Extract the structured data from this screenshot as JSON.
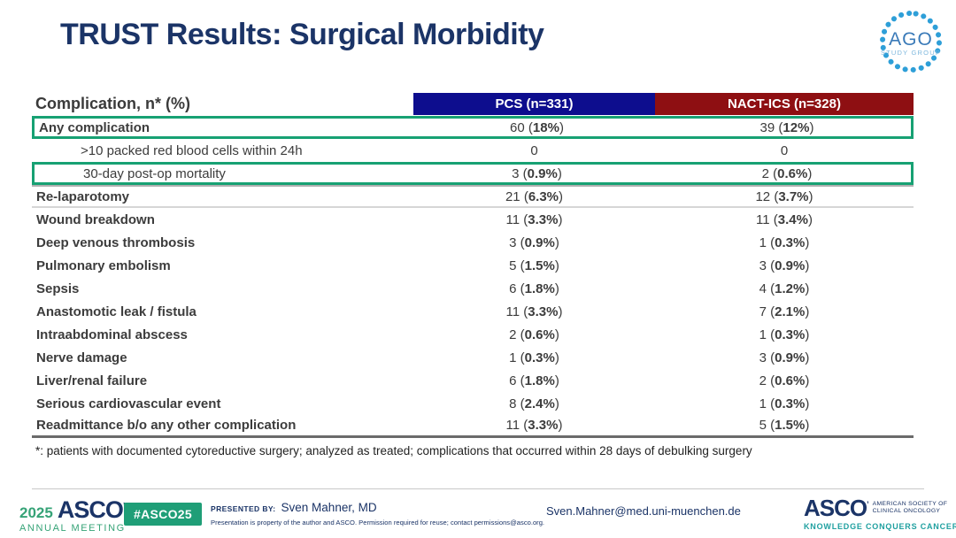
{
  "slide": {
    "title": "TRUST Results: Surgical Morbidity",
    "footnote": "*: patients with documented cytoreductive surgery; analyzed as treated; complications that occurred within 28 days of debulking surgery"
  },
  "ago_logo": {
    "name": "AGO",
    "subtitle": "STUDY GROUP"
  },
  "table": {
    "header": {
      "label": "Complication, n* (%)",
      "pcs": "PCS (n=331)",
      "nact": "NACT-ICS (n=328)"
    },
    "rows": [
      {
        "label": "Any complication",
        "highlight": true,
        "indent": false,
        "pcs": {
          "n": "60",
          "pct": "18%"
        },
        "nact": {
          "n": "39",
          "pct": "12%"
        }
      },
      {
        "label": ">10 packed red blood cells within 24h",
        "indent": true,
        "pcs": {
          "n": "0"
        },
        "nact": {
          "n": "0"
        }
      },
      {
        "label": "30-day post-op mortality",
        "highlight": true,
        "indent": true,
        "pcs": {
          "n": "3",
          "pct": "0.9%"
        },
        "nact": {
          "n": "2",
          "pct": "0.6%"
        }
      },
      {
        "label": "Re-laparotomy",
        "separator": true,
        "pcs": {
          "n": "21",
          "pct": "6.3%"
        },
        "nact": {
          "n": "12",
          "pct": "3.7%"
        }
      },
      {
        "label": "Wound breakdown",
        "pcs": {
          "n": "11",
          "pct": "3.3%"
        },
        "nact": {
          "n": "11",
          "pct": "3.4%"
        }
      },
      {
        "label": "Deep venous thrombosis",
        "pcs": {
          "n": "3",
          "pct": "0.9%"
        },
        "nact": {
          "n": "1",
          "pct": "0.3%"
        }
      },
      {
        "label": "Pulmonary embolism",
        "pcs": {
          "n": "5",
          "pct": "1.5%"
        },
        "nact": {
          "n": "3",
          "pct": "0.9%"
        }
      },
      {
        "label": "Sepsis",
        "pcs": {
          "n": "6",
          "pct": "1.8%"
        },
        "nact": {
          "n": "4",
          "pct": "1.2%"
        }
      },
      {
        "label": "Anastomotic leak / fistula",
        "pcs": {
          "n": "11",
          "pct": "3.3%"
        },
        "nact": {
          "n": "7",
          "pct": "2.1%"
        }
      },
      {
        "label": "Intraabdominal abscess",
        "pcs": {
          "n": "2",
          "pct": "0.6%"
        },
        "nact": {
          "n": "1",
          "pct": "0.3%"
        }
      },
      {
        "label": "Nerve damage",
        "pcs": {
          "n": "1",
          "pct": "0.3%"
        },
        "nact": {
          "n": "3",
          "pct": "0.9%"
        }
      },
      {
        "label": "Liver/renal failure",
        "pcs": {
          "n": "6",
          "pct": "1.8%"
        },
        "nact": {
          "n": "2",
          "pct": "0.6%"
        }
      },
      {
        "label": "Serious cardiovascular event",
        "pcs": {
          "n": "8",
          "pct": "2.4%"
        },
        "nact": {
          "n": "1",
          "pct": "0.3%"
        }
      },
      {
        "label": "Readmittance b/o any other complication",
        "pcs": {
          "n": "11",
          "pct": "3.3%"
        },
        "nact": {
          "n": "5",
          "pct": "1.5%"
        }
      }
    ]
  },
  "footer": {
    "meeting_logo": {
      "year": "2025",
      "org": "ASCO",
      "line2": "ANNUAL MEETING"
    },
    "hashtag": "#ASCO25",
    "presented_by_label": "PRESENTED BY:",
    "presenter": "Sven Mahner, MD",
    "disclaimer": "Presentation is property of the author and ASCO. Permission required for reuse; contact permissions@asco.org.",
    "email": "Sven.Mahner@med.uni-muenchen.de",
    "asco_logo": {
      "wordmark": "ASCO",
      "society_line1": "AMERICAN SOCIETY OF",
      "society_line2": "CLINICAL ONCOLOGY",
      "tagline": "KNOWLEDGE CONQUERS CANCER"
    }
  },
  "colors": {
    "title_navy": "#1b3467",
    "pcs_header_bg": "#0d0d8e",
    "nact_header_bg": "#8e0f12",
    "highlight_green": "#17a173",
    "footer_green": "#36a377",
    "badge_green": "#1f9e77",
    "tagline_teal": "#1fa0a0"
  }
}
